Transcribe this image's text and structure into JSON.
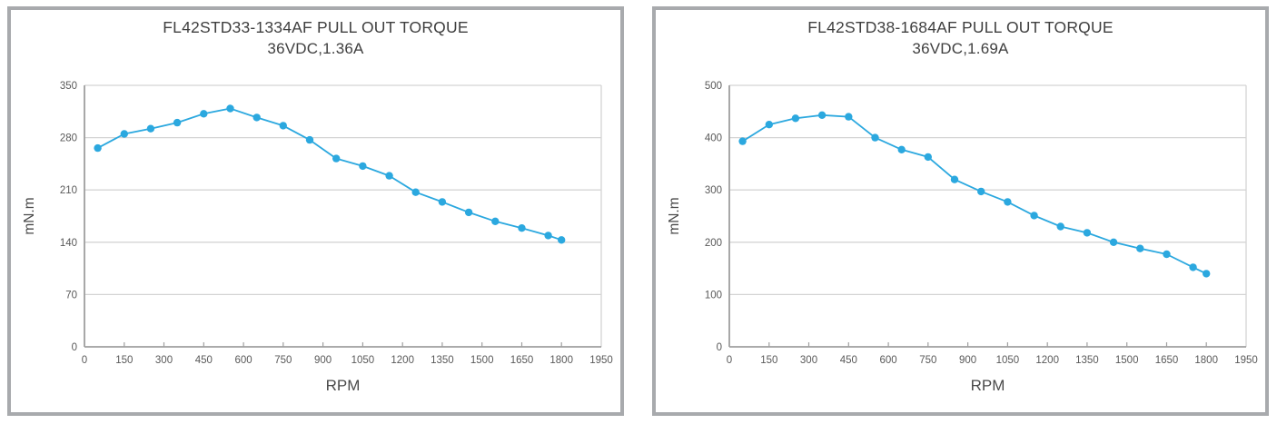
{
  "colors": {
    "accent_line": "#2BA8DF",
    "grid": "#d4d4d4",
    "axis": "#9f9f9f",
    "panel_border": "#a8aaad",
    "title_text": "#3f3f3f",
    "tick_text": "#595959"
  },
  "chart_data": [
    {
      "type": "line",
      "title": "FL42STD33-1334AF PULL OUT TORQUE",
      "subtitle": "36VDC,1.36A",
      "xlabel": "RPM",
      "ylabel": "mN.m",
      "x": [
        50,
        150,
        250,
        350,
        450,
        550,
        650,
        750,
        850,
        950,
        1050,
        1150,
        1250,
        1350,
        1450,
        1550,
        1650,
        1750,
        1800
      ],
      "values": [
        266,
        285,
        292,
        300,
        312,
        319,
        307,
        296,
        277,
        252,
        242,
        229,
        207,
        194,
        180,
        168,
        159,
        149,
        143
      ],
      "xlim": [
        0,
        1950
      ],
      "ylim": [
        0,
        350
      ],
      "x_ticks": [
        0,
        150,
        300,
        450,
        600,
        750,
        900,
        1050,
        1200,
        1350,
        1500,
        1650,
        1800,
        1950
      ],
      "y_ticks": [
        0,
        70,
        140,
        210,
        280,
        350
      ],
      "grid": true,
      "legend": "none",
      "line_color": "#2BA8DF",
      "marker": "circle"
    },
    {
      "type": "line",
      "title": "FL42STD38-1684AF PULL OUT TORQUE",
      "subtitle": "36VDC,1.69A",
      "xlabel": "RPM",
      "ylabel": "mN.m",
      "x": [
        50,
        150,
        250,
        350,
        450,
        550,
        650,
        750,
        850,
        950,
        1050,
        1150,
        1250,
        1350,
        1450,
        1550,
        1650,
        1750,
        1800
      ],
      "values": [
        393,
        425,
        437,
        443,
        440,
        400,
        377,
        363,
        320,
        297,
        277,
        251,
        230,
        218,
        200,
        188,
        177,
        152,
        140
      ],
      "xlim": [
        0,
        1950
      ],
      "ylim": [
        0,
        500
      ],
      "x_ticks": [
        0,
        150,
        300,
        450,
        600,
        750,
        900,
        1050,
        1200,
        1350,
        1500,
        1650,
        1800,
        1950
      ],
      "y_ticks": [
        0,
        100,
        200,
        300,
        400,
        500
      ],
      "grid": true,
      "legend": "none",
      "line_color": "#2BA8DF",
      "marker": "circle"
    }
  ]
}
